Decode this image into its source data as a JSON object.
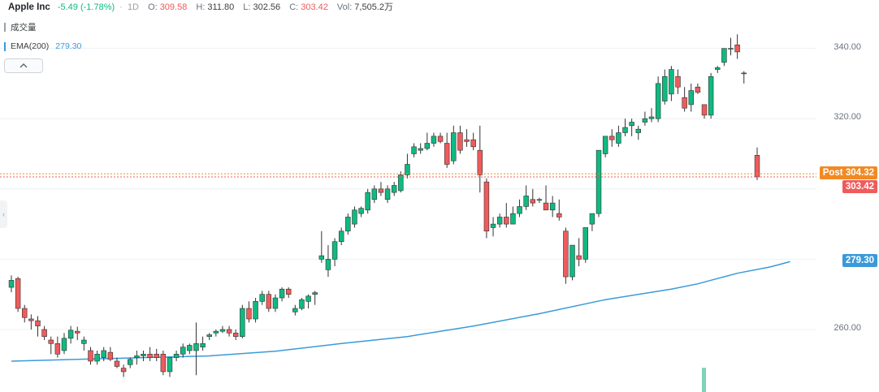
{
  "header": {
    "title": "Apple Inc",
    "change": "-5.49 (-1.78%)",
    "interval_sep": "·",
    "interval": "1D",
    "open_label": "O:",
    "open": "309.58",
    "high_label": "H:",
    "high": "311.80",
    "low_label": "L:",
    "low": "302.56",
    "close_label": "C:",
    "close": "303.42",
    "vol_label": "Vol:",
    "vol": "7,505.2万"
  },
  "indicators": {
    "volume_label": "成交量",
    "ema_label": "EMA(200)",
    "ema_value": "279.30"
  },
  "tags": {
    "post_label": "Post 304.32",
    "last_price": "303.42",
    "ema_price": "279.30"
  },
  "colors": {
    "up": "#10b981",
    "down": "#ef5b5b",
    "ema": "#3a9ad9",
    "post": "#f08a24",
    "volume_bar": "#7fd3b4"
  },
  "chart_data": {
    "type": "candlestick",
    "ylim": [
      246,
      350
    ],
    "yticks": [
      260,
      280,
      300,
      320,
      340
    ],
    "ytick_labels": [
      "260.00",
      "",
      "",
      "320.00",
      "340.00"
    ],
    "grid": true,
    "ohlc": [
      [
        272.0,
        275.4,
        270.6,
        274.0
      ],
      [
        274.5,
        275.0,
        265.0,
        266.0
      ],
      [
        266.0,
        267.0,
        262.0,
        263.4
      ],
      [
        263.0,
        264.3,
        260.0,
        262.5
      ],
      [
        262.5,
        263.8,
        258.0,
        261.0
      ],
      [
        260.0,
        261.0,
        257.0,
        258.0
      ],
      [
        257.0,
        258.0,
        253.0,
        256.0
      ],
      [
        256.0,
        258.0,
        252.0,
        253.0
      ],
      [
        254.0,
        259.0,
        253.0,
        257.5
      ],
      [
        257.5,
        261.0,
        256.0,
        259.8
      ],
      [
        259.5,
        260.8,
        257.0,
        259.0
      ],
      [
        256.0,
        258.0,
        254.0,
        257.0
      ],
      [
        254.0,
        255.0,
        250.0,
        251.0
      ],
      [
        251.0,
        254.0,
        250.0,
        253.0
      ],
      [
        252.0,
        255.0,
        251.0,
        254.0
      ],
      [
        253.5,
        255.0,
        251.0,
        251.5
      ],
      [
        251.0,
        252.0,
        249.0,
        249.5
      ],
      [
        249.0,
        250.0,
        246.5,
        248.0
      ],
      [
        250.0,
        252.0,
        249.0,
        251.5
      ],
      [
        252.0,
        254.0,
        250.0,
        252.5
      ],
      [
        252.5,
        254.0,
        251.0,
        253.0
      ],
      [
        253.0,
        255.0,
        251.0,
        252.0
      ],
      [
        253.0,
        254.5,
        251.0,
        252.0
      ],
      [
        253.0,
        254.0,
        247.0,
        248.0
      ],
      [
        248.0,
        252.0,
        246.5,
        252.0
      ],
      [
        252.0,
        254.0,
        251.0,
        253.0
      ],
      [
        253.0,
        256.0,
        252.0,
        255.0
      ],
      [
        254.0,
        256.0,
        253.0,
        255.5
      ],
      [
        254.0,
        262.0,
        247.0,
        256.0
      ],
      [
        255.0,
        258.0,
        254.0,
        256.0
      ],
      [
        258.0,
        259.0,
        257.0,
        258.5
      ],
      [
        259.0,
        260.0,
        258.0,
        259.5
      ],
      [
        259.5,
        261.0,
        259.0,
        260.0
      ],
      [
        260.0,
        261.0,
        258.0,
        259.0
      ],
      [
        259.0,
        260.0,
        257.0,
        258.0
      ],
      [
        258.0,
        267.0,
        257.5,
        266.0
      ],
      [
        266.0,
        268.0,
        262.0,
        263.0
      ],
      [
        263.0,
        269.0,
        262.0,
        268.0
      ],
      [
        268.0,
        271.0,
        267.0,
        270.0
      ],
      [
        270.0,
        271.0,
        265.0,
        266.0
      ],
      [
        266.0,
        270.0,
        265.0,
        269.0
      ],
      [
        269.0,
        272.0,
        268.0,
        271.5
      ],
      [
        271.5,
        272.0,
        269.0,
        270.0
      ],
      [
        265.0,
        267.0,
        264.0,
        266.0
      ],
      [
        266.0,
        269.0,
        265.5,
        268.5
      ],
      [
        268.0,
        270.0,
        266.0,
        269.5
      ],
      [
        270.0,
        271.0,
        267.0,
        270.5
      ],
      [
        280.0,
        288.0,
        279.0,
        281.0
      ],
      [
        277.0,
        284.0,
        275.0,
        280.0
      ],
      [
        280.0,
        286.0,
        278.0,
        285.0
      ],
      [
        285.0,
        289.0,
        284.0,
        288.0
      ],
      [
        288.0,
        293.0,
        287.0,
        292.0
      ],
      [
        290.0,
        295.0,
        289.0,
        294.0
      ],
      [
        293.0,
        295.0,
        292.0,
        294.5
      ],
      [
        294.0,
        300.0,
        293.0,
        299.0
      ],
      [
        297.0,
        301.0,
        296.0,
        300.0
      ],
      [
        300.0,
        302.0,
        298.0,
        299.0
      ],
      [
        297.0,
        301.0,
        296.0,
        300.0
      ],
      [
        299.0,
        302.0,
        298.0,
        301.0
      ],
      [
        299.5,
        305.0,
        299.0,
        304.0
      ],
      [
        304.0,
        310.0,
        303.0,
        307.0
      ],
      [
        310.0,
        313.0,
        309.0,
        312.0
      ],
      [
        311.0,
        313.0,
        310.0,
        311.5
      ],
      [
        311.5,
        316.0,
        311.0,
        313.0
      ],
      [
        313.0,
        316.0,
        312.0,
        315.0
      ],
      [
        315.0,
        316.0,
        313.0,
        313.5
      ],
      [
        313.0,
        316.0,
        306.0,
        307.0
      ],
      [
        308.0,
        318.0,
        307.0,
        316.0
      ],
      [
        316.0,
        318.0,
        310.0,
        311.0
      ],
      [
        314.0,
        317.0,
        312.0,
        313.5
      ],
      [
        314.0,
        316.0,
        311.0,
        312.0
      ],
      [
        311.0,
        318.0,
        299.0,
        304.0
      ],
      [
        302.0,
        303.0,
        286.0,
        288.0
      ],
      [
        289.0,
        292.0,
        286.5,
        290.0
      ],
      [
        290.0,
        293.0,
        289.0,
        292.0
      ],
      [
        292.0,
        296.0,
        289.0,
        290.0
      ],
      [
        290.0,
        295.0,
        290.0,
        293.0
      ],
      [
        293.0,
        297.0,
        292.0,
        295.0
      ],
      [
        295.0,
        301.0,
        294.0,
        298.0
      ],
      [
        297.0,
        300.0,
        295.0,
        296.0
      ],
      [
        297.0,
        297.5,
        296.0,
        297.0
      ],
      [
        296.0,
        301.0,
        295.0,
        294.0
      ],
      [
        294.0,
        298.0,
        292.0,
        296.0
      ],
      [
        293.0,
        297.0,
        291.0,
        292.0
      ],
      [
        288.0,
        289.0,
        273.0,
        275.0
      ],
      [
        275.0,
        284.0,
        274.0,
        284.0
      ],
      [
        281.0,
        286.0,
        278.0,
        280.0
      ],
      [
        280.0,
        289.0,
        279.0,
        289.0
      ],
      [
        290.0,
        293.0,
        288.0,
        293.0
      ],
      [
        293.0,
        311.0,
        292.0,
        311.0
      ],
      [
        310.0,
        315.0,
        309.0,
        315.0
      ],
      [
        315.0,
        317.0,
        312.0,
        314.0
      ],
      [
        313.0,
        318.0,
        312.0,
        316.0
      ],
      [
        316.0,
        320.0,
        315.0,
        317.5
      ],
      [
        318.0,
        320.0,
        315.0,
        319.0
      ],
      [
        316.0,
        318.0,
        314.0,
        317.0
      ],
      [
        319.0,
        322.0,
        318.0,
        320.0
      ],
      [
        320.0,
        323.0,
        319.0,
        320.5
      ],
      [
        320.0,
        332.0,
        319.0,
        330.0
      ],
      [
        325.0,
        334.0,
        324.0,
        332.0
      ],
      [
        327.0,
        335.0,
        325.0,
        334.0
      ],
      [
        332.0,
        334.0,
        327.0,
        329.0
      ],
      [
        326.0,
        329.0,
        322.0,
        323.0
      ],
      [
        324.0,
        330.0,
        322.0,
        328.0
      ],
      [
        329.0,
        330.0,
        327.0,
        327.5
      ],
      [
        324.0,
        323.0,
        320.0,
        321.0
      ],
      [
        321.0,
        333.0,
        320.0,
        332.0
      ],
      [
        334.0,
        335.0,
        333.0,
        334.5
      ],
      [
        336.0,
        340.0,
        335.0,
        340.0
      ],
      [
        340.0,
        343.0,
        338.0,
        340.0
      ],
      [
        341.0,
        344.0,
        337.0,
        339.0
      ],
      [
        333.0,
        333.5,
        330.0,
        333.0
      ],
      null,
      [
        309.58,
        311.8,
        302.56,
        303.42
      ]
    ],
    "ema200": [
      [
        0,
        251.0
      ],
      [
        10,
        251.5
      ],
      [
        20,
        252.0
      ],
      [
        30,
        252.5
      ],
      [
        40,
        253.8
      ],
      [
        50,
        256.0
      ],
      [
        60,
        258.0
      ],
      [
        70,
        261.0
      ],
      [
        80,
        264.5
      ],
      [
        90,
        268.5
      ],
      [
        100,
        271.5
      ],
      [
        104,
        273.0
      ],
      [
        110,
        276.0
      ],
      [
        115,
        277.8
      ],
      [
        118,
        279.3
      ]
    ],
    "post_price": 304.32,
    "last_price": 303.42,
    "volume_visible_bar": {
      "index": 105,
      "relative": 0.13
    }
  }
}
